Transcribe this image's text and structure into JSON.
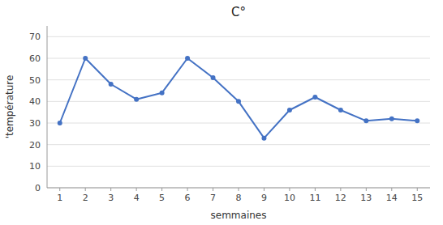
{
  "chart_data": {
    "type": "line",
    "title": "C°",
    "x_label": "semmaines",
    "y_label": "'température",
    "x": [
      1,
      2,
      3,
      4,
      5,
      6,
      7,
      8,
      9,
      10,
      11,
      12,
      13,
      14,
      15
    ],
    "values": [
      30,
      60,
      48,
      41,
      44,
      60,
      51,
      40,
      23,
      36,
      42,
      36,
      31,
      32,
      31
    ],
    "color": "#4472C4",
    "marker": "circle",
    "xlim": [
      0.5,
      15.5
    ],
    "xticks": [
      1,
      2,
      3,
      4,
      5,
      6,
      7,
      8,
      9,
      10,
      11,
      12,
      13,
      14,
      15
    ],
    "ylim": [
      0,
      75
    ],
    "yticks": [
      0,
      10,
      20,
      30,
      40,
      50,
      60,
      70
    ],
    "grid": true
  }
}
